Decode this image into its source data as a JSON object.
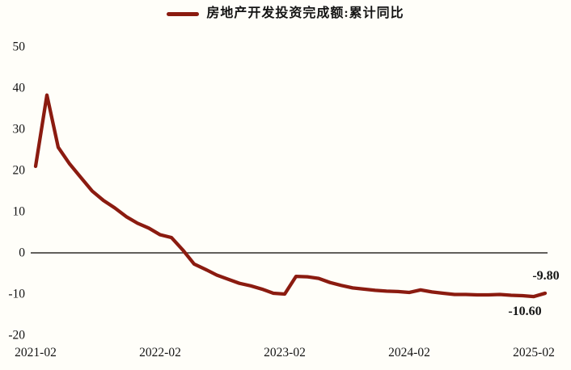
{
  "legend": {
    "label": "房地产开发投资完成额:累计同比"
  },
  "colors": {
    "line": "#8B1B10",
    "zero_line": "#2E2B28",
    "text": "#141414",
    "background": "#FFFEF9"
  },
  "chart_data": {
    "type": "line",
    "title": "",
    "series": [
      {
        "name": "房地产开发投资完成额:累计同比",
        "values": [
          21.0,
          38.3,
          25.6,
          21.6,
          18.3,
          15.0,
          12.7,
          10.9,
          8.8,
          7.2,
          6.0,
          4.4,
          3.7,
          0.7,
          -2.7,
          -4.0,
          -5.4,
          -6.4,
          -7.4,
          -8.0,
          -8.8,
          -9.8,
          -10.0,
          -5.7,
          -5.8,
          -6.2,
          -7.2,
          -7.9,
          -8.5,
          -8.8,
          -9.1,
          -9.3,
          -9.4,
          -9.6,
          -9.0,
          -9.5,
          -9.8,
          -10.1,
          -10.1,
          -10.2,
          -10.2,
          -10.1,
          -10.3,
          -10.4,
          -10.6,
          -9.8
        ]
      }
    ],
    "x_tick_labels": [
      "2021-02",
      "2022-02",
      "2023-02",
      "2024-02",
      "2025-02"
    ],
    "x_tick_point_indices": [
      0,
      11,
      22,
      33,
      44
    ],
    "x_frequency": "monthly, January omitted",
    "yticks": [
      "50",
      "40",
      "30",
      "20",
      "10",
      "0",
      "-10",
      "-20"
    ],
    "ylim": [
      -20,
      50
    ],
    "grid": false,
    "zero_baseline": true,
    "legend_position": "top-center",
    "annotations": [
      {
        "text": "-9.80",
        "point_index": 45,
        "placement": "above"
      },
      {
        "text": "-10.60",
        "point_index": 44,
        "placement": "below"
      }
    ]
  }
}
